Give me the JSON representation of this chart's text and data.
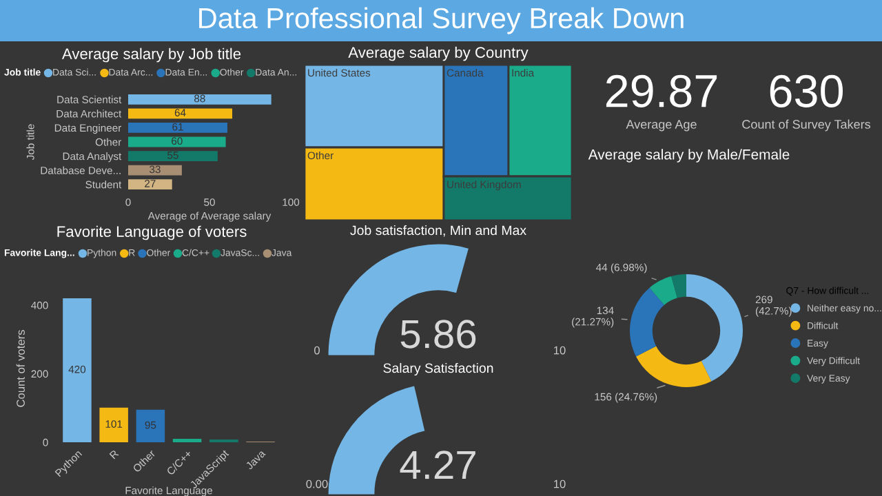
{
  "chart_data": [
    {
      "type": "other",
      "title": "Data Professional Survey Break Down",
      "color": "#5ba8e3"
    },
    {
      "type": "bar",
      "title": "Average salary by Job title",
      "orientation": "horizontal",
      "categories": [
        "Data Scientist",
        "Data Architect",
        "Data Engineer",
        "Other",
        "Data Analyst",
        "Database Deve...",
        "Student"
      ],
      "xlabel": "Average of Average salary",
      "ylabel": "Job title",
      "legend_title": "Job title",
      "legend": "top",
      "data_labels": true,
      "xlim": [
        0,
        100
      ],
      "xticks": [
        0,
        50,
        100
      ],
      "series": [
        {
          "name": "Data Sci...",
          "color": "#74b6e6",
          "values": [
            88,
            null,
            null,
            null,
            null,
            null,
            null
          ]
        },
        {
          "name": "Data Arc...",
          "color": "#f5b914",
          "values": [
            null,
            64,
            null,
            null,
            null,
            null,
            null
          ]
        },
        {
          "name": "Data En...",
          "color": "#2a74b9",
          "values": [
            null,
            null,
            61,
            null,
            null,
            null,
            null
          ]
        },
        {
          "name": "Other",
          "color": "#1aab8b",
          "values": [
            null,
            null,
            null,
            60,
            null,
            null,
            null
          ]
        },
        {
          "name": "Data An...",
          "color": "#137a6a",
          "values": [
            null,
            null,
            null,
            null,
            55,
            null,
            null
          ]
        },
        {
          "color": "#a88f74",
          "values": [
            null,
            null,
            null,
            null,
            null,
            33,
            null
          ]
        },
        {
          "color": "#d2b582",
          "values": [
            null,
            null,
            null,
            null,
            null,
            null,
            27
          ]
        }
      ]
    },
    {
      "type": "other",
      "title": "Average salary by Country",
      "categories": [
        "United States",
        "Other",
        "Canada",
        "India",
        "United Kingdom"
      ],
      "colors": [
        "#74b6e6",
        "#f5b914",
        "#2a74b9",
        "#1aab8b",
        "#137a6a"
      ]
    },
    {
      "type": "other",
      "categories": [
        "Average Age",
        "Count of Survey Takers"
      ],
      "values": [
        29.87,
        630
      ],
      "data_labels": true
    },
    {
      "type": "donut",
      "title": "Average salary by Male/Female",
      "legend_title": "Q7 - How difficult ...",
      "legend": "right",
      "categories": [
        "Neither easy no...",
        "Difficult",
        "Easy",
        "Very Difficult",
        "Very Easy"
      ],
      "values": [
        269,
        156,
        134,
        44,
        27
      ],
      "value_labels": [
        "269\n(42.7%)",
        "156 (24.76%)",
        "134\n(21.27%)",
        "44 (6.98%)",
        null
      ],
      "colors": [
        "#74b6e6",
        "#f5b914",
        "#2a74b9",
        "#1aab8b",
        "#137a6a"
      ]
    },
    {
      "type": "bar",
      "title": "Favorite Language of voters",
      "categories": [
        "Python",
        "R",
        "Other",
        "C/C++",
        "JavaScript",
        "Java"
      ],
      "xlabel": "Favorite Language",
      "ylabel": "Count of voters",
      "legend_title": "Favorite Lang...",
      "legend": "top",
      "ylim": [
        0,
        430
      ],
      "yticks": [
        0,
        200,
        400
      ],
      "series": [
        {
          "name": "Python",
          "color": "#74b6e6",
          "values": [
            420,
            null,
            null,
            null,
            null,
            null
          ],
          "value_labels": [
            "420",
            null,
            null,
            null,
            null,
            null
          ]
        },
        {
          "name": "R",
          "color": "#f5b914",
          "values": [
            null,
            101,
            null,
            null,
            null,
            null
          ],
          "value_labels": [
            null,
            "101",
            null,
            null,
            null,
            null
          ]
        },
        {
          "name": "Other",
          "color": "#2a74b9",
          "values": [
            null,
            null,
            95,
            null,
            null,
            null
          ],
          "value_labels": [
            null,
            null,
            "95",
            null,
            null,
            null
          ]
        },
        {
          "name": "C/C++",
          "color": "#1aab8b",
          "values": [
            null,
            null,
            null,
            10,
            null,
            null
          ]
        },
        {
          "name": "JavaSc...",
          "color": "#137a6a",
          "values": [
            null,
            null,
            null,
            null,
            8,
            null
          ]
        },
        {
          "name": "Java",
          "color": "#a88f74",
          "values": [
            null,
            null,
            null,
            null,
            null,
            2
          ]
        }
      ]
    },
    {
      "type": "other",
      "title": "Job satisfaction, Min and Max",
      "values": [
        5.86
      ],
      "data_labels": true,
      "annotations": [
        "0",
        "10"
      ],
      "color": "#74b6e6"
    },
    {
      "type": "other",
      "title": "Salary Satisfaction",
      "values": [
        4.27
      ],
      "data_labels": true,
      "annotations": [
        "0.00",
        "10"
      ],
      "color": "#74b6e6"
    }
  ]
}
